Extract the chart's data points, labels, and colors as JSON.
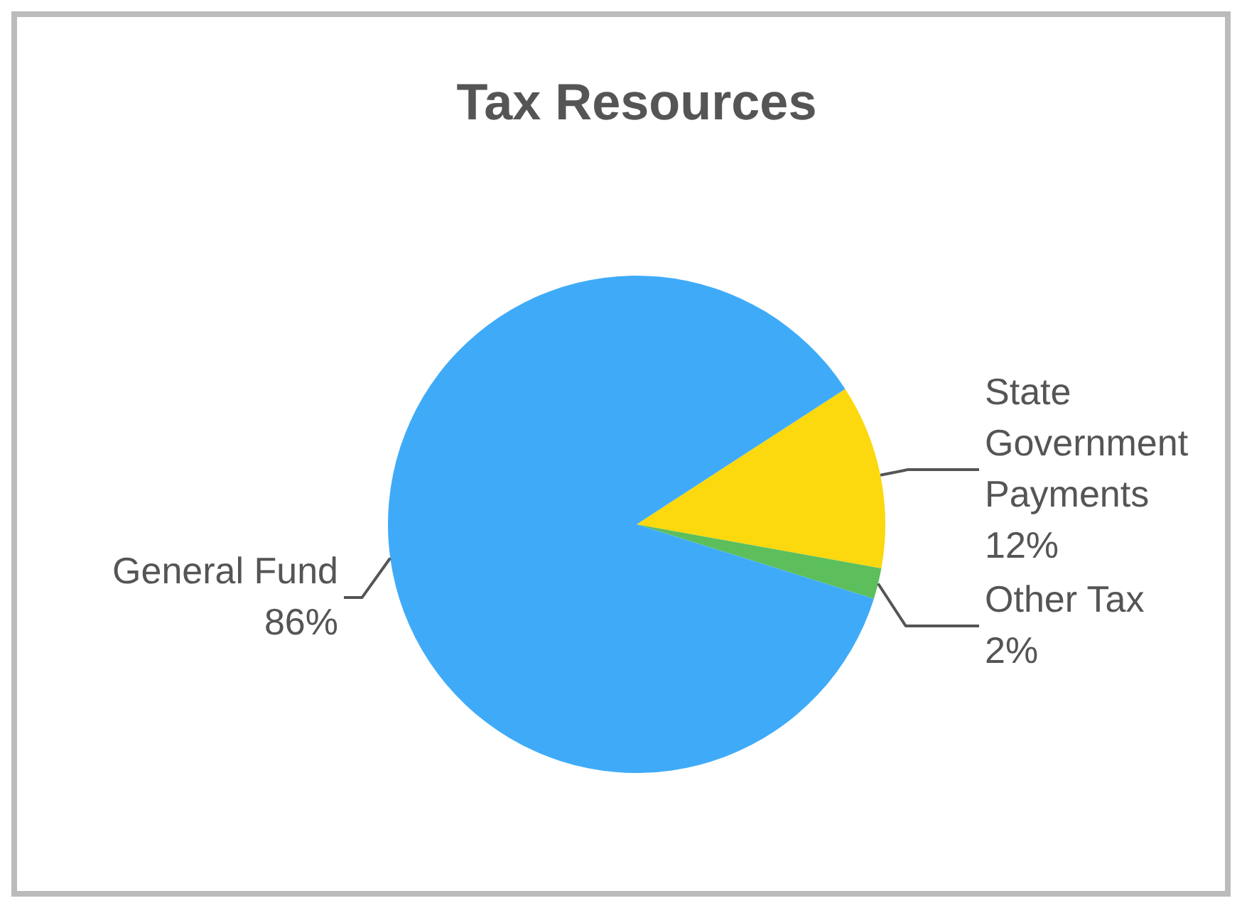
{
  "chart_data": {
    "type": "pie",
    "title": "Tax Resources",
    "categories": [
      "State Government Payments",
      "Other Tax",
      "General Fund"
    ],
    "values": [
      12,
      2,
      86
    ],
    "colors": [
      "#fcd80f",
      "#5cbf5c",
      "#3fabf8"
    ],
    "value_labels": [
      "12%",
      "2%",
      "86%"
    ]
  }
}
